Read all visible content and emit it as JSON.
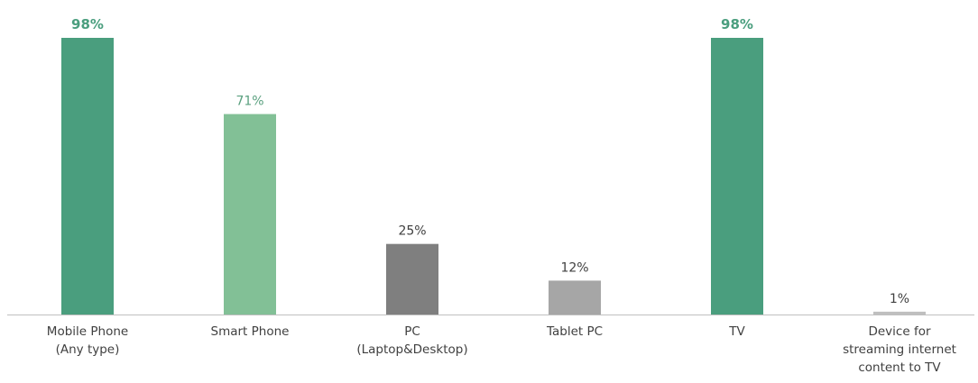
{
  "chart_data": {
    "type": "bar",
    "title": "",
    "xlabel": "",
    "ylabel": "",
    "ylim": [
      0,
      100
    ],
    "grid": false,
    "legend": "none",
    "categories": [
      [
        "Mobile Phone",
        "(Any type)"
      ],
      [
        "Smart Phone"
      ],
      [
        "PC",
        "(Laptop&Desktop)"
      ],
      [
        "Tablet PC"
      ],
      [
        "TV"
      ],
      [
        "Device for",
        "streaming internet",
        "content to TV"
      ]
    ],
    "values": [
      98,
      71,
      25,
      12,
      98,
      1
    ],
    "data_labels": [
      "98%",
      "71%",
      "25%",
      "12%",
      "98%",
      "1%"
    ],
    "bar_colors": [
      "#4a9e7e",
      "#82c096",
      "#7f7f7f",
      "#a6a6a6",
      "#4a9e7e",
      "#bfbfbf"
    ],
    "label_colors": [
      "#4a9e7e",
      "#5aa07f",
      "#404040",
      "#404040",
      "#4a9e7e",
      "#404040"
    ],
    "label_bold": [
      true,
      false,
      false,
      false,
      true,
      false
    ],
    "axis_color": "#bfbfbf"
  }
}
